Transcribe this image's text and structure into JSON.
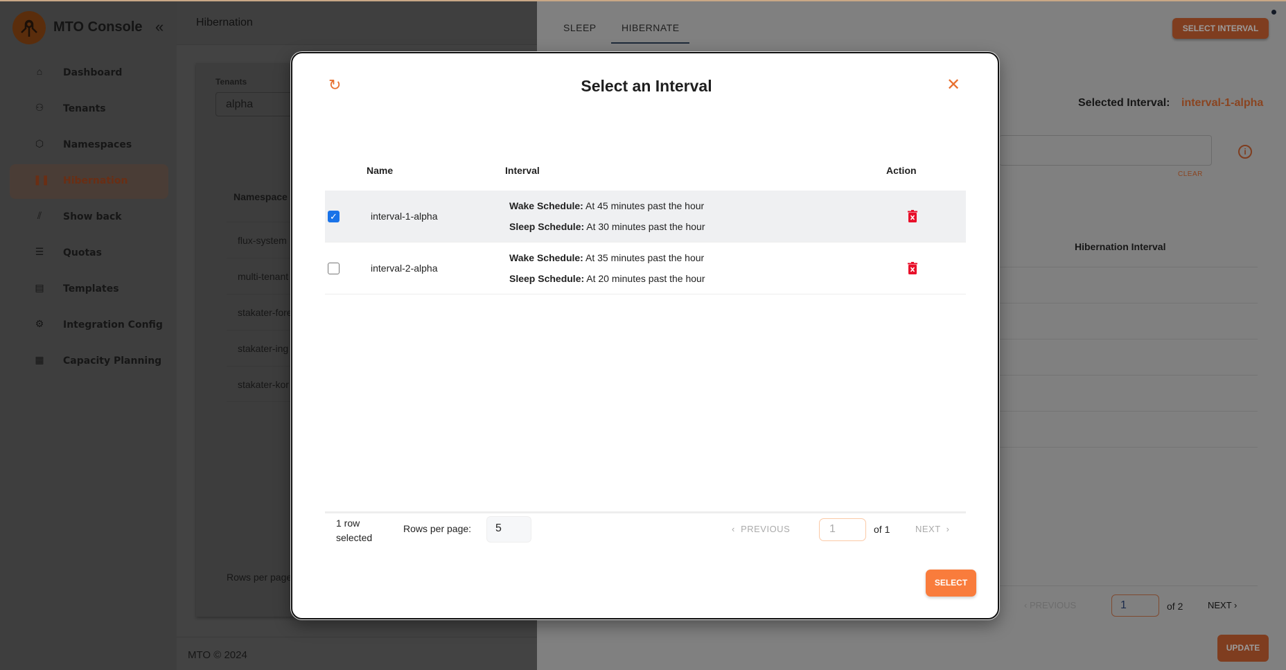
{
  "sidebar": {
    "brand": "MTO Console",
    "collapse_icon": "double-chevron-left",
    "items": [
      {
        "label": "Dashboard",
        "icon": "home-icon"
      },
      {
        "label": "Tenants",
        "icon": "users-icon"
      },
      {
        "label": "Namespaces",
        "icon": "cube-icon"
      },
      {
        "label": "Hibernation",
        "icon": "pause-icon",
        "active": true
      },
      {
        "label": "Show back",
        "icon": "chart-icon"
      },
      {
        "label": "Quotas",
        "icon": "quota-icon"
      },
      {
        "label": "Templates",
        "icon": "clipboard-icon"
      },
      {
        "label": "Integration Config",
        "icon": "gear-icon"
      },
      {
        "label": "Capacity Planning",
        "icon": "building-icon"
      }
    ]
  },
  "page": {
    "title": "Hibernation",
    "tenants_label": "Tenants",
    "tenant_value": "alpha",
    "namespace_header": "Namespace",
    "namespaces": [
      "flux-system",
      "multi-tenant",
      "stakater-fore",
      "stakater-ing",
      "stakater-kor"
    ],
    "rows_per_page": "Rows per page",
    "footer": "MTO © 2024"
  },
  "drawer": {
    "tabs": [
      "SLEEP",
      "HIBERNATE"
    ],
    "active_tab": "HIBERNATE",
    "select_interval_button": "SELECT INTERVAL",
    "selected_interval_label": "Selected Interval:",
    "selected_interval_value": "interval-1-alpha",
    "clear": "CLEAR",
    "hibernation_interval_header": "Hibernation Interval",
    "pagination": {
      "previous": "PREVIOUS",
      "page": "1",
      "of": "of 2",
      "next": "NEXT"
    },
    "update_button": "UPDATE"
  },
  "modal": {
    "title": "Select an Interval",
    "columns": [
      "Name",
      "Interval",
      "Action"
    ],
    "wake_label": "Wake Schedule:",
    "sleep_label": "Sleep Schedule:",
    "rows": [
      {
        "name": "interval-1-alpha",
        "wake": "At 45 minutes past the hour",
        "sleep": "At 30 minutes past the hour",
        "checked": true
      },
      {
        "name": "interval-2-alpha",
        "wake": "At 35 minutes past the hour",
        "sleep": "At 20 minutes past the hour",
        "checked": false
      }
    ],
    "footer": {
      "row_selected": "1 row selected",
      "rows_per_page_label": "Rows per page:",
      "rows_per_page_value": "5",
      "previous": "PREVIOUS",
      "page": "1",
      "of": "of 1",
      "next": "NEXT"
    },
    "select_button": "SELECT",
    "accent_color": "#f97c3c",
    "delete_color": "#e8102a"
  }
}
